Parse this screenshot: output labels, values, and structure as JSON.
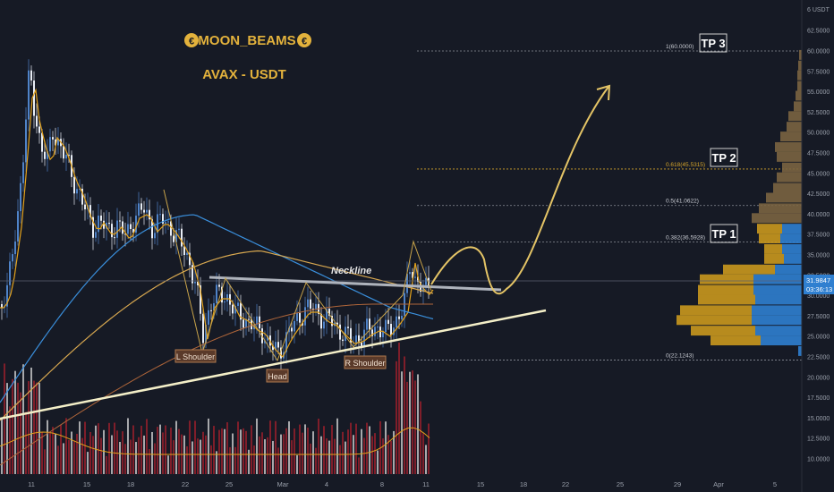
{
  "branding": {
    "author": "MOON_BEAMS",
    "coin_glyph": "€",
    "pair": "AVAX - USDT"
  },
  "colors": {
    "background": "#161a25",
    "candle_up": "#4f83c8",
    "candle_down": "#e8edf5",
    "gold": "#d6a52a",
    "volume_red": "#8b1f2b",
    "volume_white": "#d8d8d8",
    "profile_blue": "#2f7fd0",
    "profile_gold": "#c9981e",
    "profile_brown": "#7a6441"
  },
  "price_axis": {
    "unit": "USDT",
    "unit_label": "6 USDT",
    "ticks": [
      "62.5000",
      "60.0000",
      "57.5000",
      "55.0000",
      "52.5000",
      "50.0000",
      "47.5000",
      "45.0000",
      "42.5000",
      "40.0000",
      "37.5000",
      "35.0000",
      "32.5000",
      "30.0000",
      "27.5000",
      "25.0000",
      "22.5000",
      "20.0000",
      "17.5000",
      "15.0000",
      "12.5000",
      "10.0000"
    ],
    "current_price_label": "31.9847",
    "current_price_label_2": "03:36:13"
  },
  "time_axis": {
    "ticks": [
      "11",
      "15",
      "18",
      "22",
      "25",
      "Mar",
      "4",
      "8",
      "11",
      "15",
      "18",
      "22",
      "25",
      "29",
      "Apr",
      "5"
    ]
  },
  "fib_levels": [
    {
      "ratio": "1",
      "value": "60.0000",
      "label": "1(60.0000)"
    },
    {
      "ratio": "0.618",
      "value": "45.5315",
      "label": "0.618(45.5315)"
    },
    {
      "ratio": "0.5",
      "value": "41.0622",
      "label": "0.5(41.0622)"
    },
    {
      "ratio": "0.382",
      "value": "36.5928",
      "label": "0.382(36.5928)"
    },
    {
      "ratio": "0",
      "value": "22.1243",
      "label": "0(22.1243)"
    }
  ],
  "targets": [
    {
      "label": "TP 3",
      "price": 60.0
    },
    {
      "label": "TP 2",
      "price": 45.5315
    },
    {
      "label": "TP 1",
      "price": 36.5928
    }
  ],
  "pattern_labels": {
    "neckline": "Neckline",
    "left_shoulder": "L Shoulder",
    "head": "Head",
    "right_shoulder": "R Shoulder"
  }
}
